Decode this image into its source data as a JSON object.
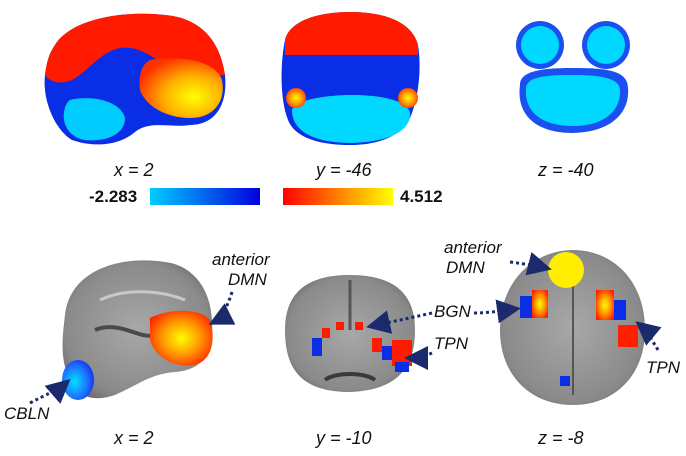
{
  "top_row": {
    "labels": [
      "x = 2",
      "y = -46",
      "z = -40"
    ]
  },
  "colorbar": {
    "min_label": "-2.283",
    "max_label": "4.512",
    "negative_colors": [
      "#00ccff",
      "#0000dd"
    ],
    "positive_colors": [
      "#ff0000",
      "#ffff00"
    ]
  },
  "bottom_row": {
    "labels": [
      "x = 2",
      "y = -10",
      "z = -8"
    ]
  },
  "annotations": {
    "anterior_dmn_sag_line1": "anterior",
    "anterior_dmn_sag_line2": "DMN",
    "cbln": "CBLN",
    "bgn": "BGN",
    "tpn_cor": "TPN",
    "anterior_dmn_ax_line1": "anterior",
    "anterior_dmn_ax_line2": "DMN",
    "tpn_ax": "TPN"
  },
  "colors": {
    "arrow": "#1a2a6c",
    "map_red": "#ff1a00",
    "map_blue": "#0a1ee6",
    "map_cyan": "#00d8ff",
    "map_yellow": "#ffee00"
  }
}
